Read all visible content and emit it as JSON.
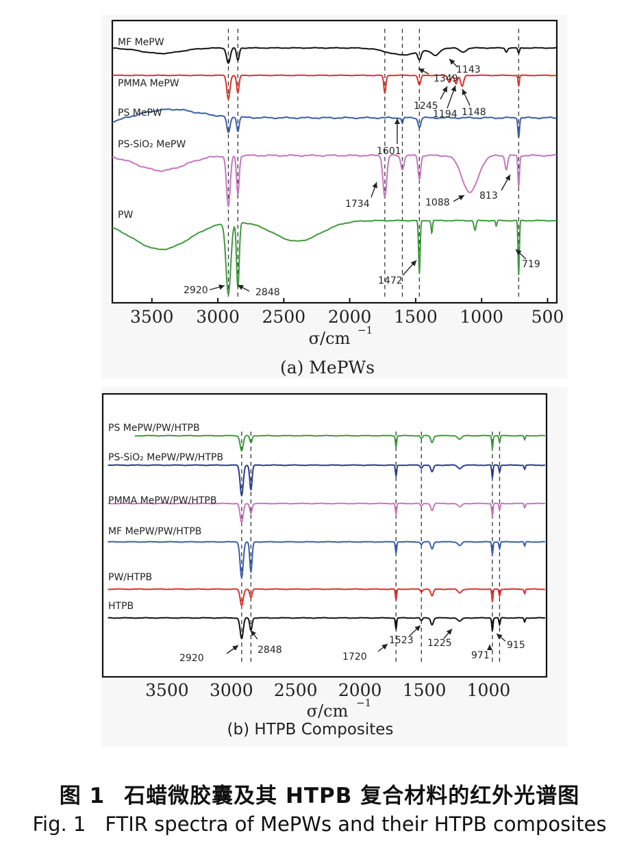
{
  "chart_data": [
    {
      "type": "line",
      "panel_label": "(a) MePWs",
      "xlabel": "σ/cm",
      "xlabel_sup": "−1",
      "xlim": [
        3800,
        430
      ],
      "x_reversed": true,
      "x_ticks": [
        3500,
        3000,
        2500,
        2000,
        1500,
        1000,
        500
      ],
      "grid": false,
      "reference_lines": [
        2920,
        2848,
        1734,
        1601,
        1472,
        719
      ],
      "series": [
        {
          "name": "MF MePW",
          "color": "#111111"
        },
        {
          "name": "PMMA MePW",
          "color": "#e0302a"
        },
        {
          "name": "PS MePW",
          "color": "#3b5ea8"
        },
        {
          "name": "PS-SiO₂ MePW",
          "color": "#c676c0"
        },
        {
          "name": "PW",
          "color": "#3f9a3d"
        }
      ],
      "annotations": [
        "1349",
        "1143",
        "1245",
        "1194",
        "1148",
        "1601",
        "1734",
        "1088",
        "813",
        "719",
        "1472",
        "2920",
        "2848"
      ]
    },
    {
      "type": "line",
      "panel_label": "(b) HTPB Composites",
      "xlabel": "σ/cm",
      "xlabel_sup": "−1",
      "xlim": [
        4000,
        550
      ],
      "x_reversed": true,
      "x_ticks": [
        3500,
        3000,
        2500,
        2000,
        1500,
        1000
      ],
      "grid": false,
      "reference_lines": [
        2920,
        2848,
        1720,
        1523,
        971,
        915
      ],
      "series": [
        {
          "name": "PS MePW/PW/HTPB",
          "color": "#3f9a3d"
        },
        {
          "name": "PS-SiO₂ MePW/PW/HTPB",
          "color": "#2c3a8c"
        },
        {
          "name": "PMMA MePW/PW/HTPB",
          "color": "#c676c0"
        },
        {
          "name": "MF MePW/PW/HTPB",
          "color": "#3b5ea8"
        },
        {
          "name": "PW/HTPB",
          "color": "#e0302a"
        },
        {
          "name": "HTPB",
          "color": "#111111"
        }
      ],
      "annotations": [
        "2920",
        "2848",
        "1720",
        "1523",
        "1225",
        "971",
        "915"
      ]
    }
  ],
  "caption": {
    "cn_fig": "图 1",
    "cn_text": "石蜡微胶囊及其 HTPB 复合材料的红外光谱图",
    "en_fig": "Fig. 1",
    "en_text": "FTIR spectra of MePWs and their HTPB composites"
  }
}
